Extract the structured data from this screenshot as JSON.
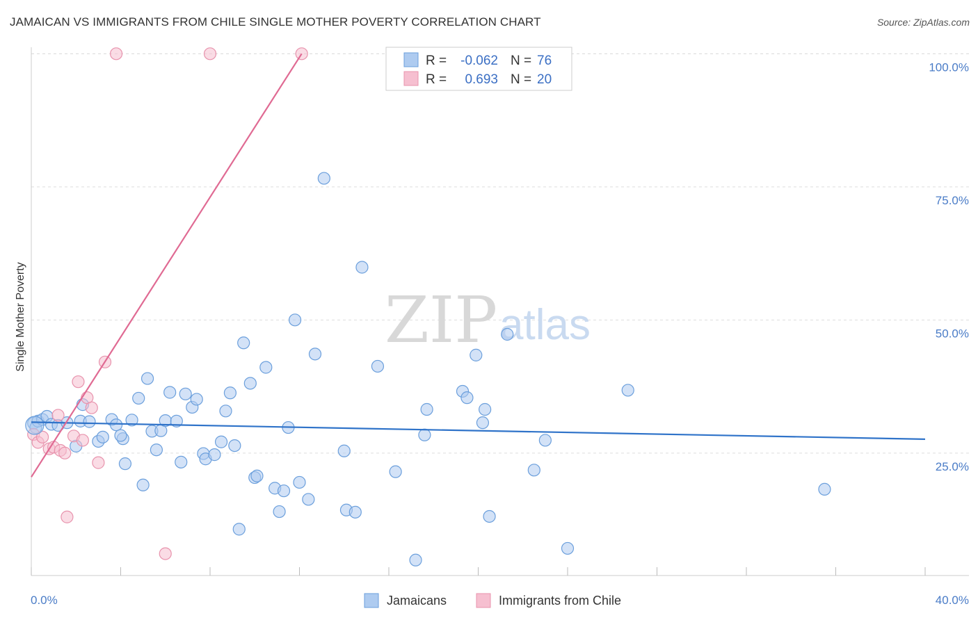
{
  "title": "JAMAICAN VS IMMIGRANTS FROM CHILE SINGLE MOTHER POVERTY CORRELATION CHART",
  "source": "Source: ZipAtlas.com",
  "watermark": {
    "zip": "ZIP",
    "atlas": "atlas"
  },
  "colors": {
    "jamaicans_fill": "#aecbf0",
    "jamaicans_stroke": "#6b9fdc",
    "jamaicans_line": "#2f73c9",
    "chile_fill": "#f6bfd0",
    "chile_stroke": "#e893ad",
    "chile_line": "#e06a93",
    "grid": "#dddddd",
    "tick_label": "#4a7cc7"
  },
  "legend": {
    "rows": [
      {
        "r_label": "R =",
        "r_value": "-0.062",
        "n_label": "N =",
        "n_value": "76"
      },
      {
        "r_label": "R =",
        "r_value": "0.693",
        "n_label": "N =",
        "n_value": "20"
      }
    ]
  },
  "chart_data": {
    "type": "scatter",
    "ylabel": "Single Mother Poverty",
    "xlabel": "",
    "x_tick_labels": [
      "0.0%",
      "40.0%"
    ],
    "y_tick_labels": [
      "100.0%",
      "75.0%",
      "50.0%",
      "25.0%"
    ],
    "xlim": [
      0,
      40
    ],
    "ylim": [
      2,
      102
    ],
    "y_ticks": [
      100,
      75,
      50,
      25
    ],
    "grid": "horizontal dashed",
    "legend_position": "top-center",
    "series": [
      {
        "name": "Jamaicans",
        "trend": {
          "x": [
            0,
            40
          ],
          "y": [
            30.8,
            27.6
          ]
        },
        "points": [
          [
            0.1,
            30.6
          ],
          [
            0.2,
            29.8
          ],
          [
            0.3,
            31.0
          ],
          [
            0.5,
            31.3
          ],
          [
            0.7,
            31.9
          ],
          [
            0.9,
            30.4
          ],
          [
            1.2,
            30.2
          ],
          [
            1.6,
            30.7
          ],
          [
            2.2,
            31.0
          ],
          [
            2.0,
            26.3
          ],
          [
            2.3,
            34.1
          ],
          [
            2.6,
            30.9
          ],
          [
            3.0,
            27.2
          ],
          [
            3.2,
            28.0
          ],
          [
            3.6,
            31.3
          ],
          [
            4.1,
            27.7
          ],
          [
            3.8,
            30.3
          ],
          [
            4.0,
            28.3
          ],
          [
            4.2,
            23.0
          ],
          [
            4.5,
            31.2
          ],
          [
            4.8,
            35.3
          ],
          [
            5.0,
            19.0
          ],
          [
            5.2,
            39.0
          ],
          [
            5.4,
            29.1
          ],
          [
            5.6,
            25.6
          ],
          [
            5.8,
            29.2
          ],
          [
            6.0,
            31.1
          ],
          [
            6.2,
            36.4
          ],
          [
            6.5,
            31.0
          ],
          [
            6.7,
            23.3
          ],
          [
            6.9,
            36.1
          ],
          [
            7.2,
            33.6
          ],
          [
            7.4,
            35.1
          ],
          [
            7.7,
            24.9
          ],
          [
            7.8,
            23.9
          ],
          [
            8.2,
            24.7
          ],
          [
            8.5,
            27.1
          ],
          [
            8.7,
            32.9
          ],
          [
            8.9,
            36.3
          ],
          [
            9.1,
            26.4
          ],
          [
            9.3,
            10.7
          ],
          [
            9.5,
            45.7
          ],
          [
            9.8,
            38.1
          ],
          [
            10.0,
            20.4
          ],
          [
            10.1,
            20.7
          ],
          [
            10.5,
            41.1
          ],
          [
            10.9,
            18.4
          ],
          [
            11.1,
            14.0
          ],
          [
            11.3,
            17.9
          ],
          [
            11.5,
            29.8
          ],
          [
            11.8,
            50.0
          ],
          [
            12.0,
            19.5
          ],
          [
            12.4,
            16.3
          ],
          [
            12.7,
            43.6
          ],
          [
            13.1,
            76.6
          ],
          [
            14.0,
            25.4
          ],
          [
            14.1,
            14.3
          ],
          [
            14.5,
            13.9
          ],
          [
            14.8,
            59.9
          ],
          [
            15.5,
            41.3
          ],
          [
            16.3,
            21.5
          ],
          [
            17.2,
            4.9
          ],
          [
            17.6,
            28.4
          ],
          [
            17.7,
            33.2
          ],
          [
            19.3,
            36.6
          ],
          [
            19.5,
            35.4
          ],
          [
            19.9,
            43.4
          ],
          [
            20.2,
            30.7
          ],
          [
            20.3,
            33.2
          ],
          [
            20.5,
            13.1
          ],
          [
            21.3,
            47.3
          ],
          [
            22.5,
            21.8
          ],
          [
            23.0,
            27.4
          ],
          [
            24.0,
            7.1
          ],
          [
            26.7,
            36.8
          ],
          [
            35.5,
            18.2
          ]
        ]
      },
      {
        "name": "Immigrants from Chile",
        "trend": {
          "x": [
            0,
            12.1
          ],
          "y": [
            20.5,
            100
          ]
        },
        "points": [
          [
            0.1,
            28.5
          ],
          [
            0.3,
            27.0
          ],
          [
            0.5,
            28.0
          ],
          [
            0.8,
            25.8
          ],
          [
            1.0,
            26.1
          ],
          [
            1.2,
            32.1
          ],
          [
            1.3,
            25.5
          ],
          [
            1.5,
            25.0
          ],
          [
            1.6,
            13.0
          ],
          [
            1.9,
            28.2
          ],
          [
            2.1,
            38.4
          ],
          [
            2.3,
            27.4
          ],
          [
            2.5,
            35.4
          ],
          [
            2.7,
            33.5
          ],
          [
            3.0,
            23.2
          ],
          [
            3.3,
            42.1
          ],
          [
            3.8,
            100.0
          ],
          [
            6.0,
            6.1
          ],
          [
            8.0,
            100.0
          ],
          [
            12.1,
            100.0
          ]
        ]
      }
    ]
  },
  "bottom_legend": [
    {
      "label": "Jamaicans"
    },
    {
      "label": "Immigrants from Chile"
    }
  ]
}
